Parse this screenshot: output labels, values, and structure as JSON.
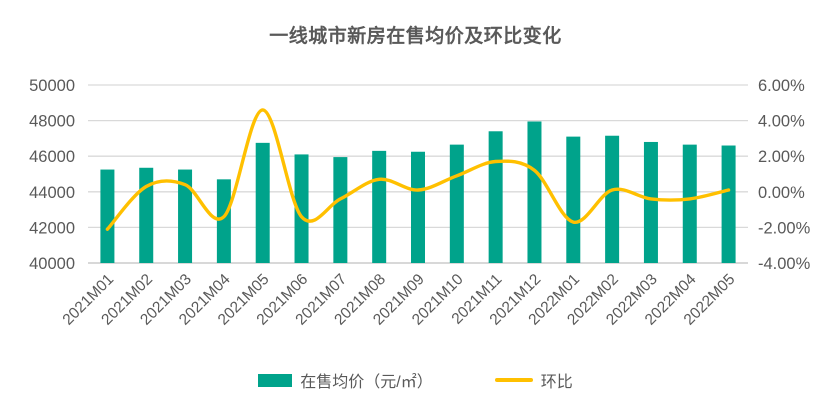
{
  "title": "一线城市新房在售均价及环比变化",
  "legend": {
    "bar_label": "在售均价（元/㎡）",
    "line_label": "环比"
  },
  "colors": {
    "bar": "#00a38b",
    "line": "#ffc000",
    "title_text": "#595959",
    "axis_text": "#595959",
    "gridline": "#d9d9d9",
    "axis_line": "#c0c0c0",
    "background": "#ffffff"
  },
  "chart_data": {
    "type": "bar+line combo",
    "title": "一线城市新房在售均价及环比变化",
    "categories": [
      "2021M01",
      "2021M02",
      "2021M03",
      "2021M04",
      "2021M05",
      "2021M06",
      "2021M07",
      "2021M08",
      "2021M09",
      "2021M10",
      "2021M11",
      "2021M12",
      "2022M01",
      "2022M02",
      "2022M03",
      "2022M04",
      "2022M05"
    ],
    "series": [
      {
        "name": "在售均价（元/㎡）",
        "type": "bar",
        "axis": "left",
        "values": [
          45250,
          45350,
          45250,
          44700,
          46750,
          46100,
          45950,
          46300,
          46250,
          46650,
          47400,
          47950,
          47100,
          47150,
          46800,
          46650,
          46600
        ]
      },
      {
        "name": "环比",
        "type": "line",
        "axis": "right",
        "unit": "%",
        "values": [
          -2.1,
          0.3,
          0.4,
          -1.4,
          4.6,
          -1.4,
          -0.4,
          0.7,
          0.1,
          0.9,
          1.7,
          1.2,
          -1.7,
          0.1,
          -0.4,
          -0.4,
          0.1
        ]
      }
    ],
    "left_axis": {
      "min": 40000,
      "max": 50000,
      "step": 2000,
      "tick_labels": [
        "50000",
        "48000",
        "46000",
        "44000",
        "42000",
        "40000"
      ]
    },
    "right_axis": {
      "min": -4,
      "max": 6,
      "step": 2,
      "tick_labels": [
        "6.00%",
        "4.00%",
        "2.00%",
        "0.00%",
        "-2.00%",
        "-4.00%"
      ]
    },
    "grid": true,
    "legend_position": "bottom",
    "x_label_rotation_deg": -45
  }
}
